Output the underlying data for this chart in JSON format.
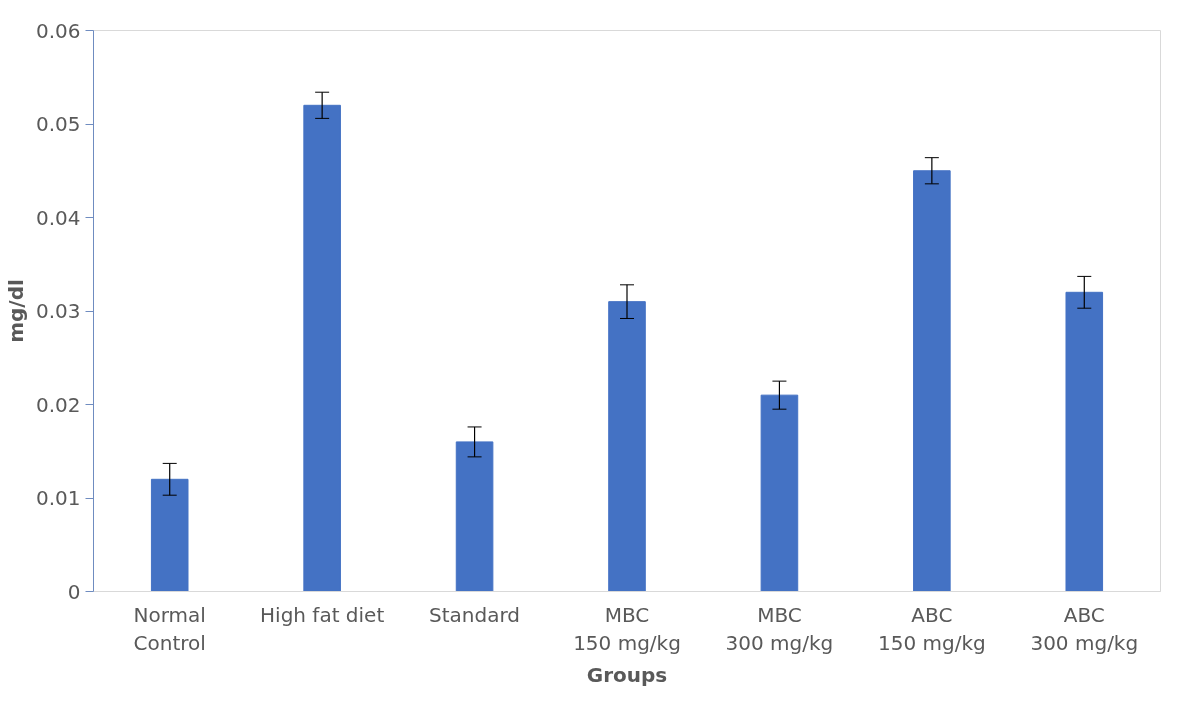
{
  "chart_data": {
    "type": "bar",
    "xlabel": "Groups",
    "ylabel": "mg/dl",
    "categories": [
      "Normal\nControl",
      "High fat diet",
      "Standard",
      "MBC\n150 mg/kg",
      "MBC\n300 mg/kg",
      "ABC\n150 mg/kg",
      "ABC\n300 mg/kg"
    ],
    "values": [
      0.012,
      0.052,
      0.016,
      0.031,
      0.021,
      0.045,
      0.032
    ],
    "errors": [
      0.0017,
      0.0014,
      0.0016,
      0.0018,
      0.0015,
      0.0014,
      0.0017
    ],
    "color": "#4472c4",
    "ylim": [
      0,
      0.06
    ],
    "yticks": [
      0,
      0.01,
      0.02,
      0.03,
      0.04,
      0.05,
      0.06
    ],
    "grid": false
  }
}
